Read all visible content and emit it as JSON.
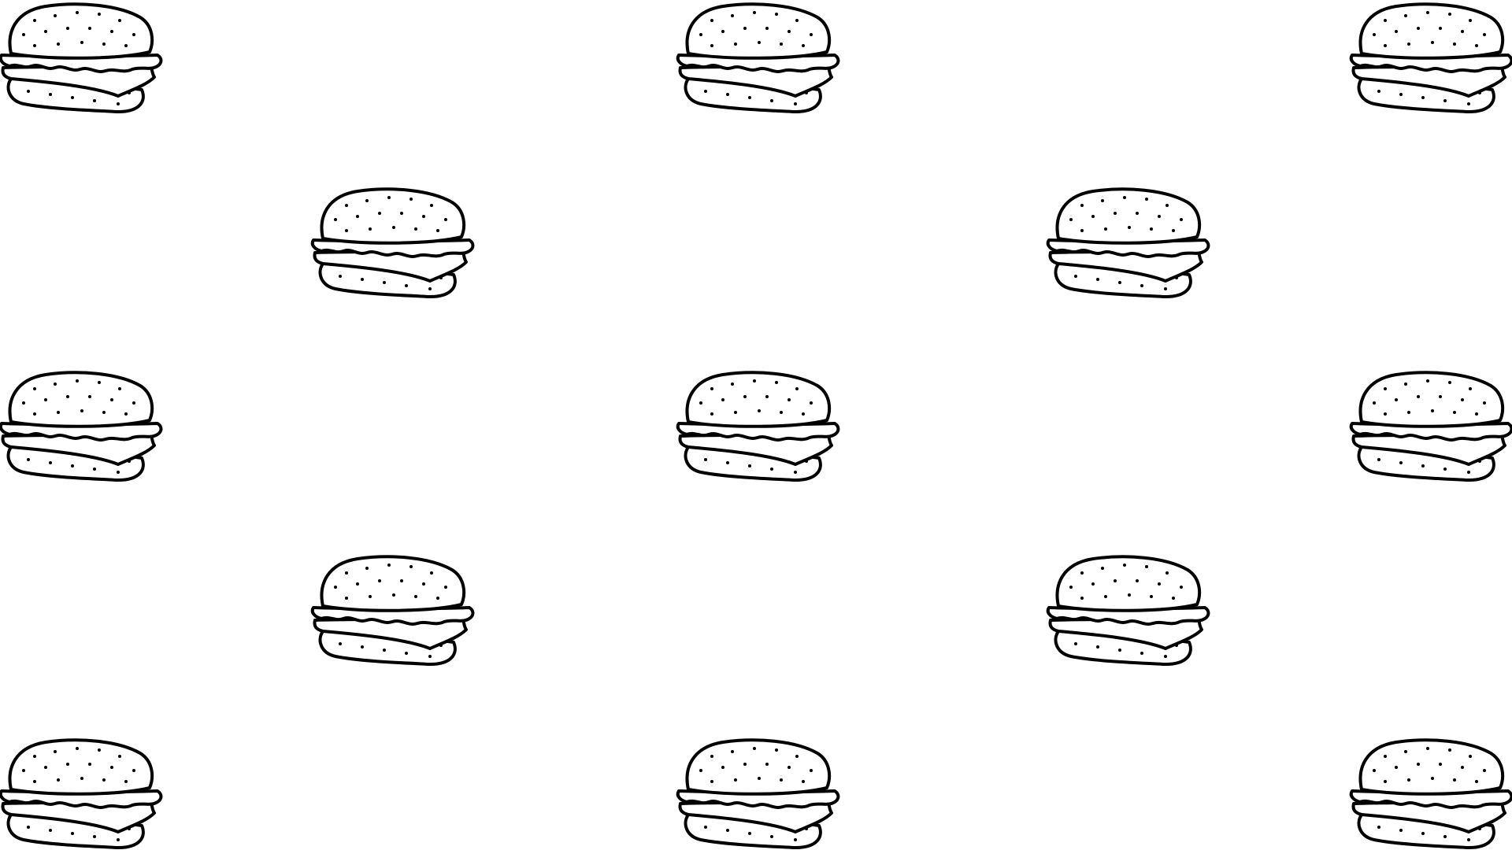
{
  "background_color": "#ffffff",
  "line_color": "#000000",
  "tile_icon": "burger-icon",
  "tile_count": 13
}
